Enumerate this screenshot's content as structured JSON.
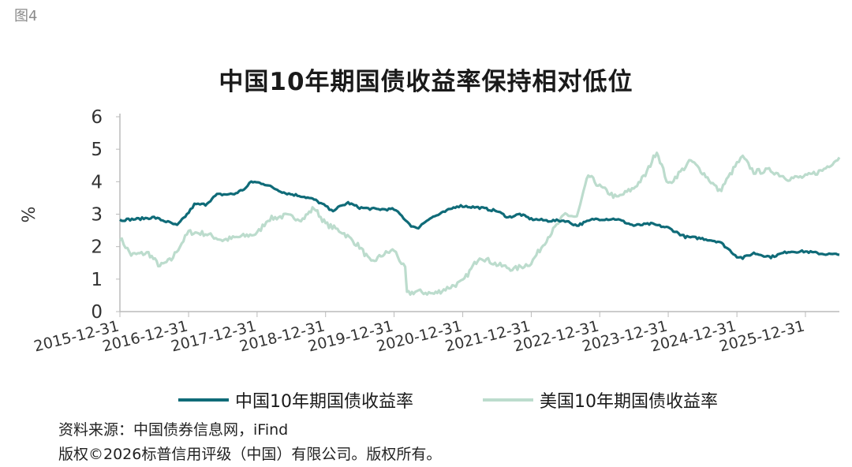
{
  "figure_label": "图4",
  "source_note": "资料来源：中国债券信息网，iFind",
  "copyright_note": "版权©2026标普信用评级（中国）有限公司。版权所有。",
  "colors": {
    "china": "#0f6b78",
    "us": "#bcdccd",
    "axis": "#bbbbbb"
  },
  "chart_data": {
    "type": "line",
    "title": "中国10年期国债收益率保持相对低位",
    "xlabel": "",
    "ylabel": "%",
    "ylim": [
      0,
      6
    ],
    "yticks": [
      "0",
      "1",
      "2",
      "3",
      "4",
      "5",
      "6"
    ],
    "xlim": [
      "2015-12-31",
      "2026-06-30"
    ],
    "xticks": [
      "2015-12-31",
      "2016-12-31",
      "2017-12-31",
      "2018-12-31",
      "2019-12-31",
      "2020-12-31",
      "2021-12-31",
      "2022-12-31",
      "2023-12-31",
      "2024-12-31",
      "2025-12-31"
    ],
    "grid": false,
    "legend": "bottom",
    "series": [
      {
        "name": "中国10年期国债收益率",
        "points": [
          [
            "2015-12-31",
            2.82
          ],
          [
            "2016-03-31",
            2.85
          ],
          [
            "2016-06-30",
            2.9
          ],
          [
            "2016-09-30",
            2.72
          ],
          [
            "2016-10-31",
            2.65
          ],
          [
            "2016-12-31",
            3.05
          ],
          [
            "2017-01-31",
            3.3
          ],
          [
            "2017-03-31",
            3.3
          ],
          [
            "2017-05-31",
            3.6
          ],
          [
            "2017-08-31",
            3.62
          ],
          [
            "2017-10-31",
            3.8
          ],
          [
            "2017-11-30",
            4.0
          ],
          [
            "2018-01-31",
            3.95
          ],
          [
            "2018-03-31",
            3.8
          ],
          [
            "2018-05-31",
            3.65
          ],
          [
            "2018-08-31",
            3.55
          ],
          [
            "2018-10-31",
            3.45
          ],
          [
            "2018-12-31",
            3.25
          ],
          [
            "2019-01-31",
            3.1
          ],
          [
            "2019-04-30",
            3.35
          ],
          [
            "2019-06-30",
            3.2
          ],
          [
            "2019-09-30",
            3.15
          ],
          [
            "2019-12-31",
            3.15
          ],
          [
            "2020-01-31",
            3.0
          ],
          [
            "2020-03-31",
            2.65
          ],
          [
            "2020-04-30",
            2.55
          ],
          [
            "2020-06-30",
            2.85
          ],
          [
            "2020-08-31",
            3.0
          ],
          [
            "2020-11-30",
            3.25
          ],
          [
            "2020-12-31",
            3.25
          ],
          [
            "2021-03-31",
            3.2
          ],
          [
            "2021-06-30",
            3.1
          ],
          [
            "2021-08-31",
            2.9
          ],
          [
            "2021-10-31",
            3.0
          ],
          [
            "2021-12-31",
            2.85
          ],
          [
            "2022-03-31",
            2.8
          ],
          [
            "2022-06-30",
            2.8
          ],
          [
            "2022-08-31",
            2.65
          ],
          [
            "2022-11-30",
            2.85
          ],
          [
            "2022-12-31",
            2.85
          ],
          [
            "2023-03-31",
            2.85
          ],
          [
            "2023-06-30",
            2.65
          ],
          [
            "2023-09-30",
            2.7
          ],
          [
            "2023-12-31",
            2.58
          ],
          [
            "2024-03-31",
            2.3
          ],
          [
            "2024-06-30",
            2.25
          ],
          [
            "2024-09-30",
            2.15
          ],
          [
            "2024-12-31",
            1.7
          ],
          [
            "2025-01-31",
            1.65
          ],
          [
            "2025-03-31",
            1.8
          ],
          [
            "2025-06-30",
            1.68
          ],
          [
            "2025-09-30",
            1.85
          ],
          [
            "2025-12-31",
            1.85
          ],
          [
            "2026-03-31",
            1.78
          ],
          [
            "2026-06-30",
            1.75
          ]
        ]
      },
      {
        "name": "美国10年期国债收益率",
        "points": [
          [
            "2015-12-31",
            2.27
          ],
          [
            "2016-02-29",
            1.75
          ],
          [
            "2016-05-31",
            1.8
          ],
          [
            "2016-07-31",
            1.4
          ],
          [
            "2016-09-30",
            1.6
          ],
          [
            "2016-12-31",
            2.45
          ],
          [
            "2017-03-31",
            2.4
          ],
          [
            "2017-06-30",
            2.2
          ],
          [
            "2017-09-30",
            2.3
          ],
          [
            "2017-12-31",
            2.4
          ],
          [
            "2018-02-28",
            2.85
          ],
          [
            "2018-05-31",
            2.95
          ],
          [
            "2018-08-31",
            2.85
          ],
          [
            "2018-10-31",
            3.2
          ],
          [
            "2018-12-31",
            2.7
          ],
          [
            "2019-03-31",
            2.45
          ],
          [
            "2019-06-30",
            2.0
          ],
          [
            "2019-08-31",
            1.5
          ],
          [
            "2019-10-31",
            1.75
          ],
          [
            "2019-12-31",
            1.9
          ],
          [
            "2020-02-28",
            1.3
          ],
          [
            "2020-03-09",
            0.55
          ],
          [
            "2020-04-30",
            0.62
          ],
          [
            "2020-07-31",
            0.55
          ],
          [
            "2020-09-30",
            0.7
          ],
          [
            "2020-12-31",
            0.92
          ],
          [
            "2021-03-31",
            1.7
          ],
          [
            "2021-06-30",
            1.45
          ],
          [
            "2021-09-30",
            1.3
          ],
          [
            "2021-12-31",
            1.5
          ],
          [
            "2022-03-31",
            2.3
          ],
          [
            "2022-06-30",
            3.0
          ],
          [
            "2022-08-31",
            2.9
          ],
          [
            "2022-10-31",
            4.2
          ],
          [
            "2022-12-31",
            3.85
          ],
          [
            "2023-03-31",
            3.5
          ],
          [
            "2023-06-30",
            3.8
          ],
          [
            "2023-08-31",
            4.2
          ],
          [
            "2023-10-31",
            4.95
          ],
          [
            "2023-12-31",
            3.9
          ],
          [
            "2024-04-30",
            4.65
          ],
          [
            "2024-06-30",
            4.3
          ],
          [
            "2024-09-30",
            3.7
          ],
          [
            "2024-12-31",
            4.55
          ],
          [
            "2025-01-31",
            4.75
          ],
          [
            "2025-03-31",
            4.3
          ],
          [
            "2025-06-30",
            4.35
          ],
          [
            "2025-09-30",
            4.1
          ],
          [
            "2025-12-31",
            4.15
          ],
          [
            "2026-03-31",
            4.35
          ],
          [
            "2026-06-30",
            4.75
          ]
        ]
      }
    ]
  }
}
